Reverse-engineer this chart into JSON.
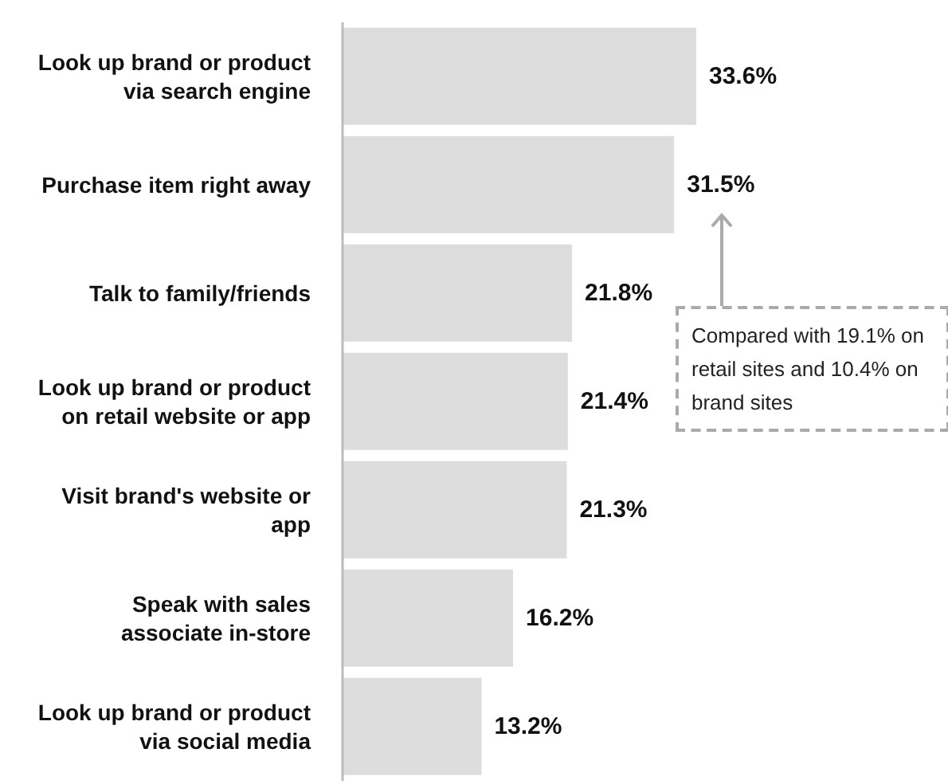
{
  "chart_data": {
    "type": "bar",
    "orientation": "horizontal",
    "categories": [
      "Look up brand or product via search engine",
      "Purchase item right away",
      "Talk to family/friends",
      "Look up brand or product on retail website or app",
      "Visit brand's website or app",
      "Speak with sales associate in-store",
      "Look up brand or product via social media"
    ],
    "values": [
      33.6,
      31.5,
      21.8,
      21.4,
      21.3,
      16.2,
      13.2
    ],
    "value_labels": [
      "33.6%",
      "31.5%",
      "21.8%",
      "21.4%",
      "21.3%",
      "16.2%",
      "13.2%"
    ],
    "color": "#dddddd",
    "annotations": [
      "Compared with 19.1% on retail sites and 10.4% on brand sites"
    ]
  }
}
